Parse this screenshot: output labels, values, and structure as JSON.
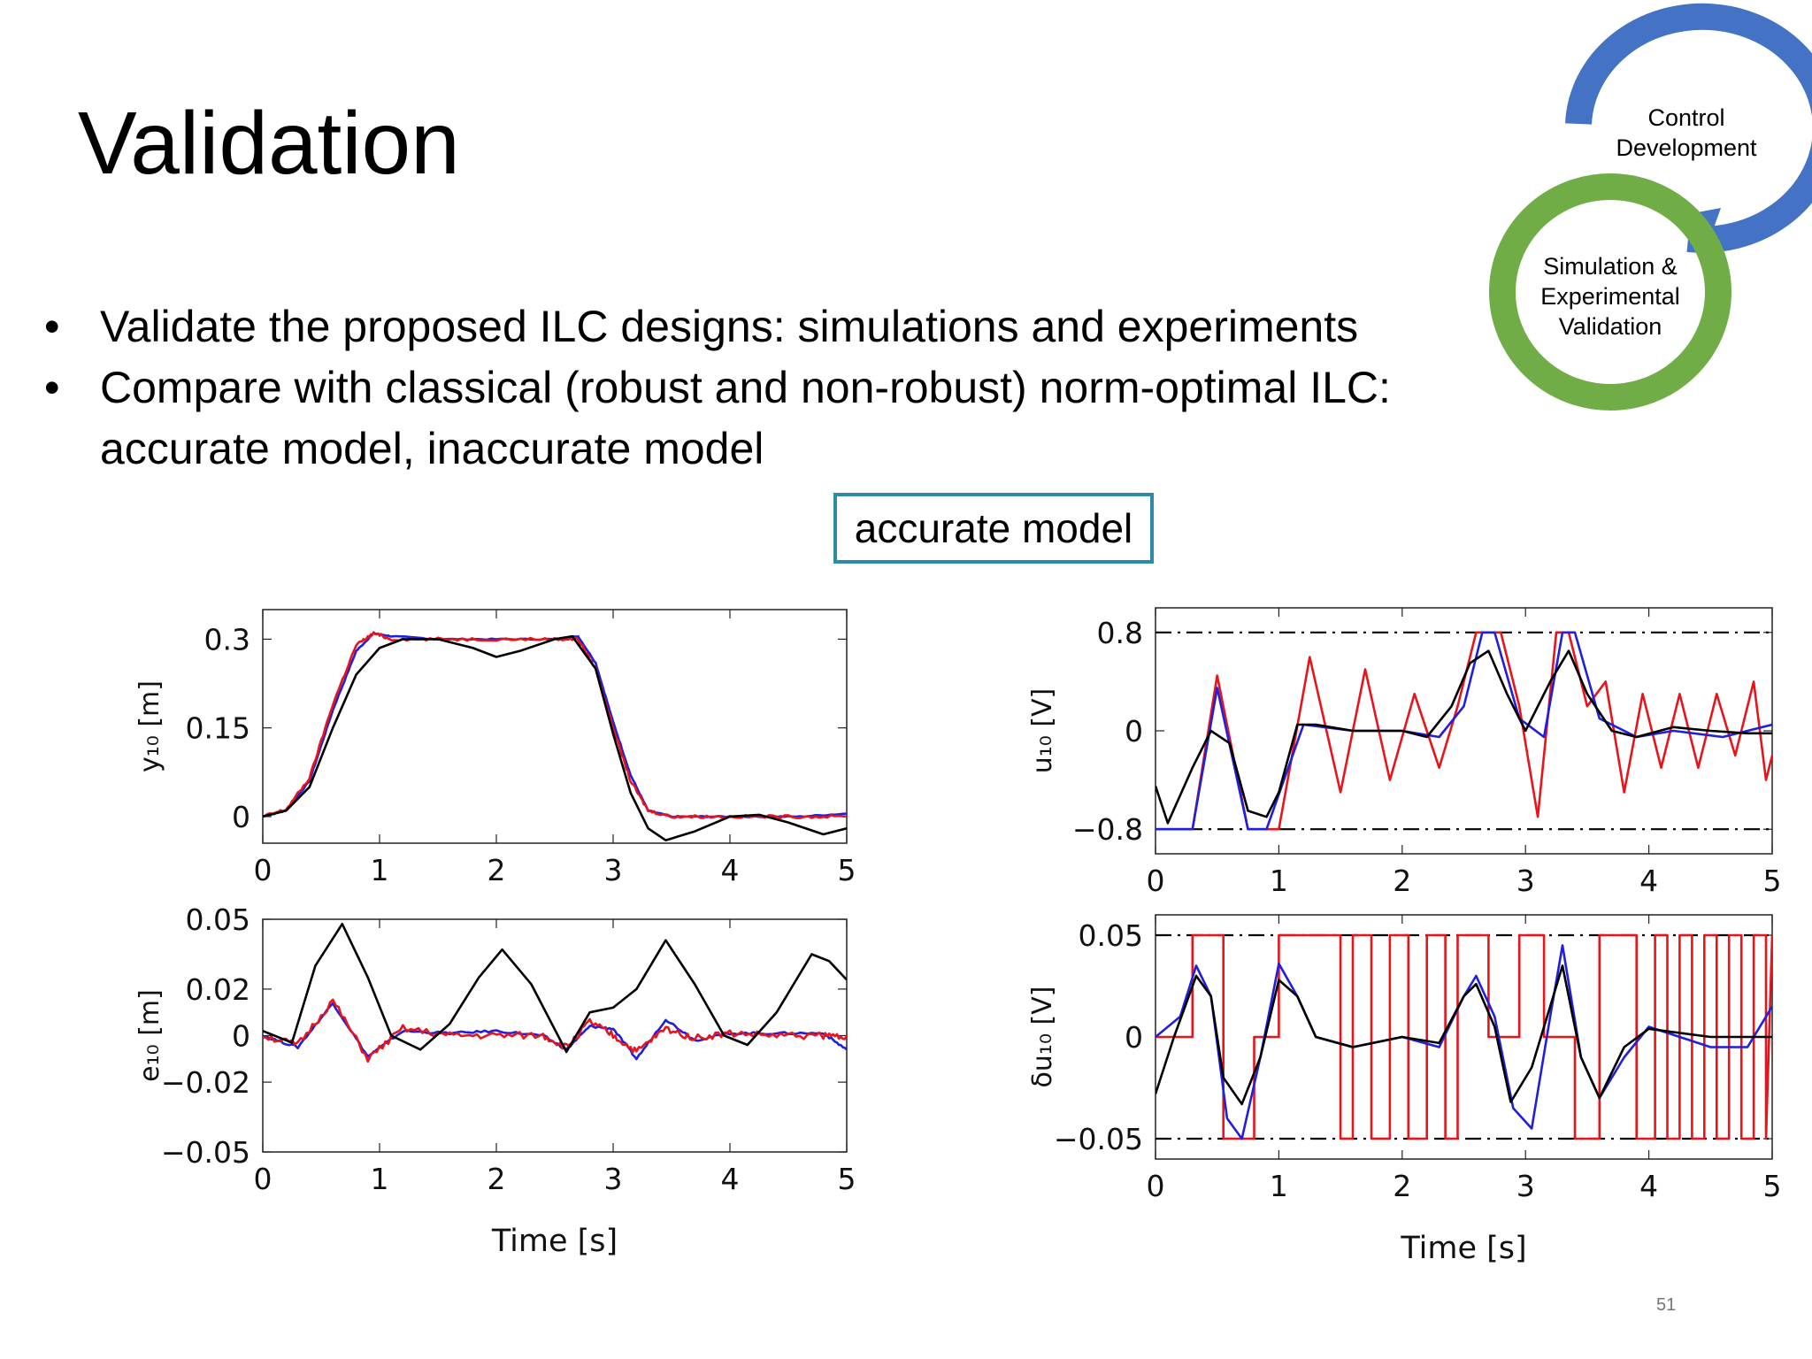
{
  "slide": {
    "title": "Validation",
    "bullets": [
      "Validate the proposed ILC designs: simulations and experiments",
      "Compare with classical (robust and non-robust) norm-optimal ILC: accurate model, inaccurate model"
    ],
    "badge": "accurate model",
    "page_number": "51",
    "cycle": {
      "top_label": "Control Development",
      "bottom_label": "Simulation & Experimental Validation",
      "top_color": "#4472c4",
      "bottom_color": "#70ad47"
    }
  },
  "colors": {
    "blue": "#1f1fdd",
    "red": "#e8141c",
    "black": "#000000",
    "badge_border": "#2e8aa8"
  },
  "chart_data": [
    {
      "id": "y10",
      "type": "line",
      "ylabel": "y₁₀ [m]",
      "xlabel": "",
      "xlim": [
        0,
        5
      ],
      "ylim": [
        -0.045,
        0.35
      ],
      "xticks": [
        0,
        1,
        2,
        3,
        4,
        5
      ],
      "xtick_labels": [
        "0",
        "1",
        "2",
        "3",
        "4",
        "5"
      ],
      "yticks": [
        0.3,
        0.15,
        0
      ],
      "ytick_labels": [
        "0.3",
        "0.15",
        "0"
      ],
      "series": [
        {
          "color": "blue",
          "noise": 0.001,
          "x": [
            0,
            0.2,
            0.4,
            0.6,
            0.8,
            0.95,
            1.1,
            1.5,
            2.0,
            2.5,
            2.7,
            2.85,
            3.0,
            3.15,
            3.3,
            3.5,
            3.8,
            4.2,
            4.6,
            5.0
          ],
          "y": [
            0,
            0.01,
            0.06,
            0.18,
            0.28,
            0.31,
            0.305,
            0.3,
            0.3,
            0.3,
            0.305,
            0.26,
            0.16,
            0.07,
            0.01,
            0,
            0,
            0,
            0,
            0.005
          ]
        },
        {
          "color": "red",
          "noise": 0.0025,
          "x": [
            0,
            0.2,
            0.4,
            0.6,
            0.8,
            0.95,
            1.1,
            1.5,
            2.0,
            2.5,
            2.7,
            2.85,
            3.0,
            3.15,
            3.3,
            3.5,
            3.8,
            4.2,
            4.6,
            5.0
          ],
          "y": [
            0,
            0.012,
            0.065,
            0.19,
            0.29,
            0.31,
            0.3,
            0.3,
            0.3,
            0.3,
            0.3,
            0.25,
            0.15,
            0.06,
            0.01,
            0,
            0,
            0,
            0,
            0
          ]
        },
        {
          "color": "black",
          "noise": 0,
          "x": [
            0,
            0.2,
            0.4,
            0.6,
            0.8,
            1.0,
            1.2,
            1.5,
            1.8,
            2.0,
            2.2,
            2.5,
            2.65,
            2.85,
            3.0,
            3.15,
            3.3,
            3.45,
            3.7,
            4.0,
            4.25,
            4.5,
            4.8,
            5.0
          ],
          "y": [
            0,
            0.01,
            0.05,
            0.15,
            0.24,
            0.285,
            0.3,
            0.3,
            0.285,
            0.27,
            0.28,
            0.3,
            0.305,
            0.25,
            0.14,
            0.04,
            -0.02,
            -0.04,
            -0.025,
            0,
            0.003,
            -0.01,
            -0.03,
            -0.02
          ]
        }
      ]
    },
    {
      "id": "e10",
      "type": "line",
      "ylabel": "e₁₀ [m]",
      "xlabel": "Time [s]",
      "xlim": [
        0,
        5
      ],
      "ylim": [
        -0.05,
        0.05
      ],
      "xticks": [
        0,
        1,
        2,
        3,
        4,
        5
      ],
      "xtick_labels": [
        "0",
        "1",
        "2",
        "3",
        "4",
        "5"
      ],
      "yticks": [
        0.05,
        0.02,
        0,
        -0.02,
        -0.05
      ],
      "ytick_labels": [
        "0.05",
        "0.02",
        "0",
        "−0.02",
        "−0.05"
      ],
      "series": [
        {
          "color": "blue",
          "noise": 0.0005,
          "x": [
            0,
            0.3,
            0.6,
            0.9,
            1.2,
            1.6,
            2.0,
            2.4,
            2.6,
            2.8,
            3.0,
            3.2,
            3.45,
            3.7,
            4.0,
            4.4,
            4.8,
            5.0
          ],
          "y": [
            0,
            -0.005,
            0.014,
            -0.009,
            0.002,
            0.001,
            0.002,
            0,
            -0.006,
            0.004,
            0.003,
            -0.01,
            0.007,
            -0.002,
            0.001,
            0.001,
            0.001,
            -0.006
          ]
        },
        {
          "color": "red",
          "noise": 0.0015,
          "x": [
            0,
            0.3,
            0.6,
            0.9,
            1.2,
            1.6,
            2.0,
            2.4,
            2.6,
            2.8,
            3.0,
            3.2,
            3.45,
            3.7,
            4.0,
            4.4,
            4.8,
            5.0
          ],
          "y": [
            0,
            -0.004,
            0.015,
            -0.01,
            0.003,
            0,
            0,
            0,
            -0.005,
            0.006,
            0,
            -0.007,
            0.003,
            -0.001,
            0.001,
            0,
            0,
            0
          ]
        },
        {
          "color": "black",
          "noise": 0,
          "x": [
            0,
            0.25,
            0.45,
            0.68,
            0.9,
            1.1,
            1.35,
            1.6,
            1.85,
            2.05,
            2.3,
            2.6,
            2.8,
            3.0,
            3.2,
            3.45,
            3.7,
            3.95,
            4.15,
            4.4,
            4.7,
            4.85,
            5.0
          ],
          "y": [
            0.002,
            -0.003,
            0.03,
            0.048,
            0.025,
            0,
            -0.006,
            0.005,
            0.025,
            0.037,
            0.022,
            -0.007,
            0.01,
            0.012,
            0.02,
            0.041,
            0.022,
            0,
            -0.004,
            0.01,
            0.035,
            0.032,
            0.024
          ]
        }
      ]
    },
    {
      "id": "u10",
      "type": "line",
      "ylabel": "u₁₀ [V]",
      "xlabel": "",
      "xlim": [
        0,
        5
      ],
      "ylim": [
        -1.0,
        1.0
      ],
      "hlines": [
        0.8,
        -0.8
      ],
      "xticks": [
        0,
        1,
        2,
        3,
        4,
        5
      ],
      "xtick_labels": [
        "0",
        "1",
        "2",
        "3",
        "4",
        "5"
      ],
      "yticks": [
        0.8,
        0,
        -0.8
      ],
      "ytick_labels": [
        "0.8",
        "0",
        "−0.8"
      ],
      "series": [
        {
          "color": "red",
          "noise": 0,
          "x": [
            0,
            0.3,
            0.5,
            0.75,
            1.0,
            1.25,
            1.5,
            1.7,
            1.9,
            2.1,
            2.3,
            2.45,
            2.6,
            2.7,
            2.8,
            2.95,
            3.1,
            3.25,
            3.35,
            3.5,
            3.65,
            3.8,
            3.95,
            4.1,
            4.25,
            4.4,
            4.55,
            4.7,
            4.85,
            4.95,
            5.0
          ],
          "y": [
            -0.8,
            -0.8,
            0.45,
            -0.8,
            -0.8,
            0.6,
            -0.5,
            0.5,
            -0.4,
            0.3,
            -0.3,
            0.2,
            0.8,
            0.8,
            0.8,
            0.2,
            -0.7,
            0.8,
            0.8,
            0.2,
            0.4,
            -0.5,
            0.3,
            -0.3,
            0.3,
            -0.3,
            0.3,
            -0.2,
            0.4,
            -0.4,
            -0.2
          ]
        },
        {
          "color": "blue",
          "noise": 0,
          "x": [
            0,
            0.3,
            0.5,
            0.75,
            0.9,
            1.2,
            1.6,
            2.0,
            2.3,
            2.5,
            2.65,
            2.75,
            2.95,
            3.15,
            3.3,
            3.4,
            3.6,
            3.9,
            4.2,
            4.6,
            5.0
          ],
          "y": [
            -0.8,
            -0.8,
            0.35,
            -0.8,
            -0.8,
            0.05,
            0,
            0,
            -0.05,
            0.2,
            0.8,
            0.8,
            0.1,
            -0.05,
            0.8,
            0.8,
            0.1,
            -0.05,
            0,
            -0.05,
            0.05
          ]
        },
        {
          "color": "black",
          "noise": 0,
          "x": [
            0,
            0.1,
            0.3,
            0.45,
            0.6,
            0.75,
            0.9,
            1.0,
            1.15,
            1.3,
            1.6,
            2.0,
            2.2,
            2.4,
            2.55,
            2.7,
            2.85,
            3.0,
            3.2,
            3.35,
            3.5,
            3.7,
            3.9,
            4.2,
            4.5,
            4.8,
            5.0
          ],
          "y": [
            -0.45,
            -0.75,
            -0.3,
            0.0,
            -0.1,
            -0.65,
            -0.7,
            -0.5,
            0.05,
            0.05,
            0,
            0,
            -0.05,
            0.2,
            0.55,
            0.65,
            0.3,
            0.0,
            0.4,
            0.65,
            0.3,
            0.0,
            -0.05,
            0.03,
            0.0,
            -0.02,
            -0.02
          ]
        }
      ]
    },
    {
      "id": "du10",
      "type": "line",
      "ylabel": "δu₁₀ [V]",
      "xlabel": "Time [s]",
      "xlim": [
        0,
        5
      ],
      "ylim": [
        -0.06,
        0.06
      ],
      "hlines": [
        0.05,
        -0.05
      ],
      "xticks": [
        0,
        1,
        2,
        3,
        4,
        5
      ],
      "xtick_labels": [
        "0",
        "1",
        "2",
        "3",
        "4",
        "5"
      ],
      "yticks": [
        0.05,
        0,
        -0.05
      ],
      "ytick_labels": [
        "0.05",
        "0",
        "−0.05"
      ],
      "series": [
        {
          "color": "red",
          "noise": 0,
          "x": [
            0,
            0.3,
            0.3,
            0.55,
            0.55,
            0.8,
            0.8,
            1.0,
            1.0,
            1.5,
            1.5,
            1.6,
            1.6,
            1.75,
            1.75,
            1.9,
            1.9,
            2.05,
            2.05,
            2.2,
            2.2,
            2.35,
            2.35,
            2.45,
            2.45,
            2.7,
            2.7,
            2.95,
            2.95,
            3.15,
            3.15,
            3.4,
            3.4,
            3.6,
            3.6,
            3.9,
            3.9,
            4.05,
            4.05,
            4.15,
            4.15,
            4.25,
            4.25,
            4.35,
            4.35,
            4.45,
            4.45,
            4.55,
            4.55,
            4.65,
            4.65,
            4.75,
            4.75,
            4.85,
            4.85,
            4.95,
            4.95,
            5.0
          ],
          "y": [
            0,
            0,
            0.05,
            0.05,
            -0.05,
            -0.05,
            0,
            0,
            0.05,
            0.05,
            -0.05,
            -0.05,
            0.05,
            0.05,
            -0.05,
            -0.05,
            0.05,
            0.05,
            -0.05,
            -0.05,
            0.05,
            0.05,
            -0.05,
            -0.05,
            0.05,
            0.05,
            0,
            0,
            0.05,
            0.05,
            0,
            0,
            -0.05,
            -0.05,
            0.05,
            0.05,
            -0.05,
            -0.05,
            0.05,
            0.05,
            -0.05,
            -0.05,
            0.05,
            0.05,
            -0.05,
            -0.05,
            0.05,
            0.05,
            -0.05,
            -0.05,
            0.05,
            0.05,
            -0.05,
            -0.05,
            0.05,
            0.05,
            -0.05,
            0.05
          ]
        },
        {
          "color": "blue",
          "noise": 0,
          "x": [
            0,
            0.2,
            0.33,
            0.45,
            0.58,
            0.7,
            0.85,
            1.0,
            1.15,
            1.3,
            1.6,
            2.0,
            2.3,
            2.5,
            2.6,
            2.75,
            2.9,
            3.05,
            3.2,
            3.3,
            3.45,
            3.6,
            3.8,
            4.0,
            4.5,
            4.8,
            5.0
          ],
          "y": [
            0,
            0.01,
            0.035,
            0.02,
            -0.04,
            -0.05,
            -0.01,
            0.036,
            0.02,
            0,
            -0.005,
            0,
            -0.005,
            0.02,
            0.03,
            0.01,
            -0.035,
            -0.045,
            0.01,
            0.045,
            -0.01,
            -0.03,
            -0.01,
            0.005,
            -0.005,
            -0.005,
            0.015
          ]
        },
        {
          "color": "black",
          "noise": 0,
          "x": [
            0,
            0.15,
            0.33,
            0.45,
            0.55,
            0.7,
            0.85,
            1.0,
            1.15,
            1.3,
            1.6,
            2.0,
            2.3,
            2.5,
            2.6,
            2.75,
            2.88,
            3.05,
            3.2,
            3.3,
            3.45,
            3.6,
            3.8,
            4.0,
            4.5,
            5.0
          ],
          "y": [
            -0.028,
            0.0,
            0.03,
            0.02,
            -0.02,
            -0.033,
            -0.01,
            0.028,
            0.02,
            0,
            -0.005,
            0,
            -0.003,
            0.02,
            0.026,
            0.005,
            -0.032,
            -0.015,
            0.015,
            0.035,
            -0.01,
            -0.03,
            -0.005,
            0.004,
            0,
            0
          ]
        }
      ]
    }
  ]
}
